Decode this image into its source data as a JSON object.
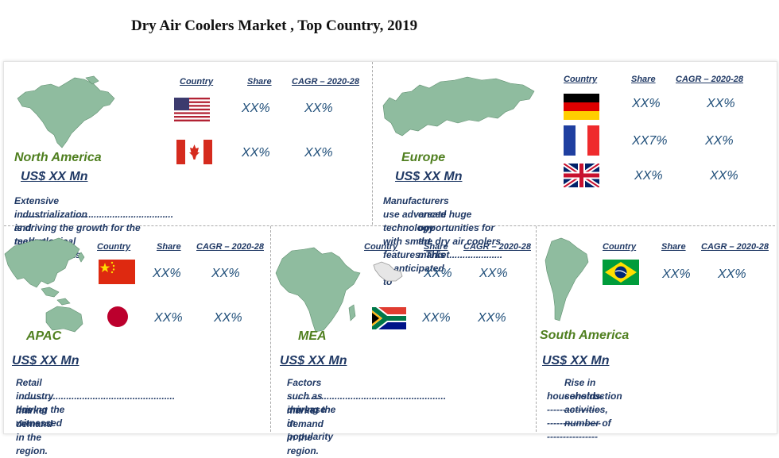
{
  "title": "Dry Air Coolers Market , Top Country, 2019",
  "headers": {
    "country": "Country",
    "share": "Share",
    "cagr": "CAGR – 2020-28"
  },
  "regions": {
    "north_america": {
      "name": "North America",
      "usd": "US$ XX Mn",
      "desc1": "Extensive industrialization and technological advancements",
      "desc2": "............................................................ is driving the growth for the market",
      "rows": [
        {
          "country": "United States",
          "flag": "us-flag-icon",
          "share": "XX%",
          "cagr": "XX%"
        },
        {
          "country": "Canada",
          "flag": "canada-flag-icon",
          "share": "XX%",
          "cagr": "XX%"
        }
      ]
    },
    "europe": {
      "name": "Europe",
      "usd": "US$ XX Mn",
      "desc1": "Manufacturers use advanced technology with smart features. This is anticipated to",
      "desc2": "create huge opportunities for the dry air coolers market....................",
      "rows": [
        {
          "country": "Germany",
          "flag": "germany-flag-icon",
          "share": "XX%",
          "cagr": "XX%"
        },
        {
          "country": "France",
          "flag": "france-flag-icon",
          "share": "XX7%",
          "cagr": "XX%"
        },
        {
          "country": "United Kingdom",
          "flag": "uk-flag-icon",
          "share": "XX%",
          "cagr": "XX%"
        }
      ]
    },
    "apac": {
      "name": "APAC",
      "usd": "US$ XX Mn",
      "desc1": "Retail industry has witnessed",
      "desc2": "............................................................ driving the",
      "desc3": "market demand in the region.",
      "rows": [
        {
          "country": "China",
          "flag": "china-flag-icon",
          "share": "XX%",
          "cagr": "XX%"
        },
        {
          "country": "Japan",
          "flag": "japan-flag-icon",
          "share": "XX%",
          "cagr": "XX%"
        }
      ]
    },
    "mea": {
      "name": "MEA",
      "usd": "US$ XX Mn",
      "desc1": "Factors such as increase in popularity",
      "desc2": "............................................................ driving the",
      "desc3": "market demand in the region.",
      "rows": [
        {
          "country": "Saudi Arabia",
          "flag": "saudi-arabia-map-icon",
          "share": "XX%",
          "cagr": "XX%"
        },
        {
          "country": "South Africa",
          "flag": "south-africa-flag-icon",
          "share": "XX%",
          "cagr": "XX%"
        }
      ]
    },
    "south_america": {
      "name": "South America",
      "usd": "US$ XX Mn",
      "desc1": "Rise in construction activities, number of",
      "desc2": "households---------------------------------------------------",
      "rows": [
        {
          "country": "Brazil",
          "flag": "brazil-flag-icon",
          "share": "XX%",
          "cagr": "XX%"
        }
      ]
    }
  },
  "colors": {
    "map": "#8fbc9f",
    "region_text": "#4f7f1f",
    "value_text": "#1f4e79",
    "header_text": "#1f3864"
  }
}
